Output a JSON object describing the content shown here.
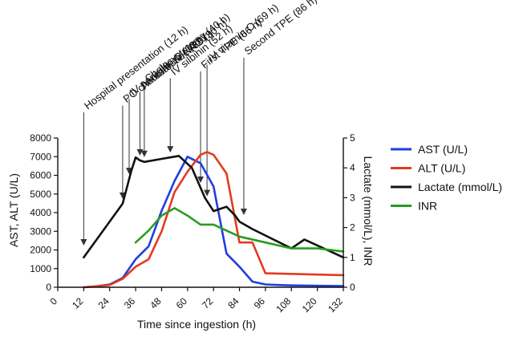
{
  "chart_data": {
    "type": "line",
    "title": "",
    "xlabel": "Time since ingestion (h)",
    "ylabel_left": "AST, ALT (U/L)",
    "ylabel_right": "Lactate (mmol/L), INR",
    "xlim": [
      0,
      132
    ],
    "x_ticks": [
      "0",
      "12",
      "24",
      "36",
      "48",
      "60",
      "72",
      "84",
      "96",
      "108",
      "120",
      "132"
    ],
    "ylim_left": [
      0,
      8000
    ],
    "y_ticks_left": [
      "0",
      "1000",
      "2000",
      "3000",
      "4000",
      "5000",
      "6000",
      "7000",
      "8000"
    ],
    "ylim_right": [
      0,
      5
    ],
    "y_ticks_right": [
      "0",
      "1",
      "2",
      "3",
      "4",
      "5"
    ],
    "grid": false,
    "legend_position": "right",
    "series": [
      {
        "name": "AST (U/L)",
        "axis": "left",
        "color": "#1f3fe0",
        "x": [
          12,
          18,
          24,
          30,
          36,
          42,
          48,
          54,
          60,
          66,
          72,
          78,
          84,
          90,
          96,
          102,
          108,
          132
        ],
        "y": [
          0,
          50,
          150,
          500,
          1500,
          2200,
          4100,
          5700,
          7000,
          6650,
          5400,
          1800,
          1100,
          300,
          150,
          120,
          100,
          60
        ]
      },
      {
        "name": "ALT (U/L)",
        "axis": "left",
        "color": "#e53a1f",
        "x": [
          12,
          18,
          24,
          30,
          36,
          42,
          48,
          54,
          60,
          66,
          69,
          72,
          78,
          84,
          90,
          96,
          132
        ],
        "y": [
          0,
          50,
          120,
          450,
          1100,
          1500,
          3000,
          5100,
          6200,
          7100,
          7250,
          7100,
          6100,
          2400,
          2400,
          750,
          650
        ]
      },
      {
        "name": "Lactate (mmol/L)",
        "axis": "right",
        "color": "#111111",
        "x": [
          12,
          30,
          34,
          36,
          38,
          40,
          48,
          56,
          62,
          68,
          72,
          78,
          82,
          84,
          90,
          108,
          114,
          132
        ],
        "y": [
          1.0,
          2.8,
          3.9,
          4.35,
          4.25,
          4.2,
          4.3,
          4.4,
          4.0,
          3.0,
          2.55,
          2.7,
          2.4,
          2.2,
          1.95,
          1.3,
          1.6,
          1.0
        ]
      },
      {
        "name": "INR",
        "axis": "right",
        "color": "#2a9d1f",
        "x": [
          36,
          42,
          48,
          54,
          60,
          66,
          72,
          84,
          96,
          108,
          120,
          132
        ],
        "y": [
          1.5,
          1.9,
          2.4,
          2.65,
          2.4,
          2.1,
          2.1,
          1.7,
          1.5,
          1.3,
          1.3,
          1.2
        ]
      }
    ],
    "annotations": [
      {
        "label": "Hospital presentation (12 h)",
        "x": 12
      },
      {
        "label": "PO charcoal, IV NAC (30 h)",
        "x": 30
      },
      {
        "label": "IV penicillin G (33 h)",
        "x": 33
      },
      {
        "label": "IV octreotide (38 h)",
        "x": 38
      },
      {
        "label": "Cholecystotomy (40 h)",
        "x": 40
      },
      {
        "label": "IV silbinin (52 h)",
        "x": 52
      },
      {
        "label": "First TPE (66 h)",
        "x": 66
      },
      {
        "label": "IV vitamin C (69 h)",
        "x": 69
      },
      {
        "label": "Second TPE (86 h)",
        "x": 86
      }
    ]
  }
}
